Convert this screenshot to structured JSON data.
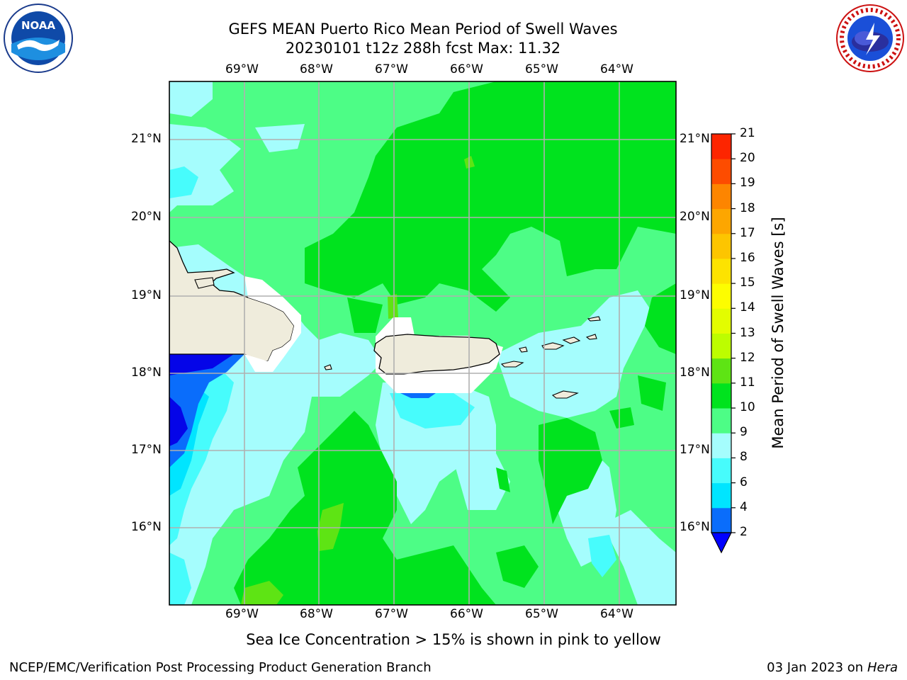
{
  "header": {
    "title_line1": "GEFS MEAN Puerto Rico Mean Period of Swell Waves",
    "title_line2": "20230101 t12z 288h fcst   Max: 11.32"
  },
  "map": {
    "lon_labels": [
      "69°W",
      "68°W",
      "67°W",
      "66°W",
      "65°W",
      "64°W"
    ],
    "lat_labels": [
      "21°N",
      "20°N",
      "19°N",
      "18°N",
      "17°N",
      "16°N"
    ],
    "land_color": "#efecdc",
    "grid_color": "#b0b0b0"
  },
  "colorbar": {
    "label": "Mean Period of Swell Waves [s]",
    "ticks": [
      "2",
      "4",
      "6",
      "8",
      "9",
      "10",
      "11",
      "12",
      "13",
      "14",
      "15",
      "16",
      "17",
      "18",
      "19",
      "20",
      "21"
    ],
    "colors": [
      "#0505e8",
      "#0a6dfb",
      "#00e5ff",
      "#47fcfc",
      "#a5fdfd",
      "#4dfd86",
      "#00e31e",
      "#5ee414",
      "#bdfd00",
      "#e3fd00",
      "#fdfd00",
      "#fde300",
      "#fdc500",
      "#fda600",
      "#fd8500",
      "#fd4c00",
      "#fd2500",
      "#fd0000"
    ],
    "under_color": "#0000ff"
  },
  "footer": {
    "note": "Sea Ice Concentration > 15% is shown in pink to yellow",
    "left": "NCEP/EMC/Verification Post Processing Product Generation Branch",
    "right_date": "03 Jan 2023 on",
    "right_host": "Hera"
  },
  "logos": {
    "left_text": "NOAA",
    "right_text": "NATIONAL WEATHER SERVICE"
  }
}
